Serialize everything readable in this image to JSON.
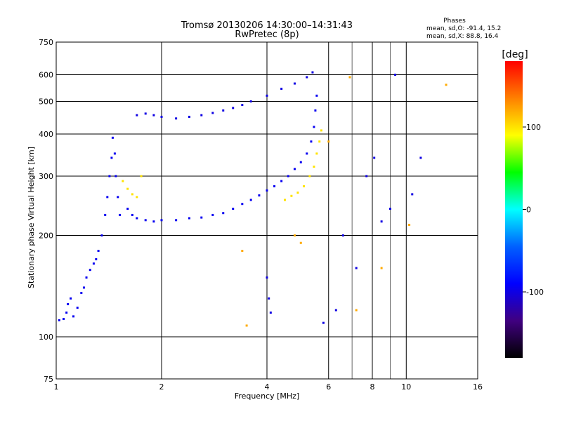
{
  "chart_data": {
    "type": "scatter",
    "title": "Tromsø 20130206 14:30:00–14:31:43",
    "subtitle": "RwPretec (8p)",
    "stats": {
      "heading": "Phases",
      "line_o": "mean, sd,O: -91.4, 15.2",
      "line_x": "mean, sd,X:  88.8, 16.4"
    },
    "xlabel": "Frequency [MHz]",
    "ylabel": "Stationary phase Virtual Height [km]",
    "x_scale": "log",
    "y_scale": "log",
    "xlim": [
      1,
      16
    ],
    "ylim": [
      75,
      750
    ],
    "x_ticks": [
      1,
      2,
      4,
      6,
      8,
      10,
      16
    ],
    "x_tick_labels": [
      "1",
      "2",
      "4",
      "6",
      "8",
      "10",
      "16"
    ],
    "x_minor_lines": [
      7,
      9
    ],
    "y_ticks": [
      75,
      100,
      200,
      300,
      400,
      500,
      600,
      750
    ],
    "y_tick_labels": [
      "75",
      "100",
      "200",
      "300",
      "400",
      "500",
      "600",
      "750"
    ],
    "grid": true,
    "colorbar": {
      "label": "[deg]",
      "range": [
        -180,
        180
      ],
      "ticks": [
        100,
        0,
        -100
      ],
      "tick_labels": [
        "100",
        "0",
        "-100"
      ],
      "colors": [
        "#ff0000",
        "#ff8000",
        "#ffff00",
        "#00ff00",
        "#00ffff",
        "#0060ff",
        "#0000ff",
        "#400080",
        "#000000"
      ]
    },
    "traces": [
      {
        "name": "",
        "phase": -95,
        "points": [
          [
            1.02,
            112
          ],
          [
            1.05,
            113
          ],
          [
            1.07,
            118
          ],
          [
            1.08,
            125
          ],
          [
            1.1,
            130
          ],
          [
            1.12,
            115
          ],
          [
            1.15,
            122
          ],
          [
            1.18,
            135
          ],
          [
            1.2,
            140
          ],
          [
            1.22,
            150
          ],
          [
            1.25,
            158
          ],
          [
            1.28,
            165
          ],
          [
            1.3,
            170
          ],
          [
            1.32,
            180
          ],
          [
            1.35,
            200
          ],
          [
            1.38,
            230
          ],
          [
            1.4,
            260
          ],
          [
            1.42,
            300
          ],
          [
            1.44,
            340
          ],
          [
            1.45,
            390
          ],
          [
            1.47,
            350
          ],
          [
            1.48,
            300
          ],
          [
            1.5,
            260
          ],
          [
            1.52,
            230
          ]
        ]
      },
      {
        "name": "",
        "phase": -95,
        "points": [
          [
            1.6,
            240
          ],
          [
            1.65,
            230
          ],
          [
            1.7,
            225
          ],
          [
            1.8,
            222
          ],
          [
            1.9,
            220
          ],
          [
            2.0,
            222
          ],
          [
            2.2,
            222
          ],
          [
            2.4,
            225
          ],
          [
            2.6,
            226
          ],
          [
            2.8,
            230
          ],
          [
            3.0,
            233
          ],
          [
            3.2,
            240
          ],
          [
            3.4,
            248
          ],
          [
            3.6,
            255
          ],
          [
            3.8,
            263
          ],
          [
            4.0,
            272
          ],
          [
            4.2,
            280
          ],
          [
            4.4,
            290
          ],
          [
            4.6,
            300
          ],
          [
            4.8,
            315
          ],
          [
            5.0,
            330
          ],
          [
            5.2,
            350
          ],
          [
            5.35,
            380
          ],
          [
            5.45,
            420
          ],
          [
            5.5,
            470
          ],
          [
            5.55,
            520
          ]
        ]
      },
      {
        "name": "",
        "phase": 100,
        "points": [
          [
            1.55,
            290
          ],
          [
            1.6,
            275
          ],
          [
            1.65,
            265
          ],
          [
            1.7,
            260
          ],
          [
            1.75,
            300
          ],
          [
            4.5,
            255
          ],
          [
            4.7,
            262
          ],
          [
            4.9,
            268
          ],
          [
            5.1,
            280
          ],
          [
            5.3,
            300
          ],
          [
            5.45,
            320
          ],
          [
            5.55,
            350
          ],
          [
            5.65,
            380
          ],
          [
            5.72,
            410
          ]
        ]
      },
      {
        "name": "",
        "phase": -100,
        "points": [
          [
            1.7,
            455
          ],
          [
            1.8,
            460
          ],
          [
            1.9,
            455
          ],
          [
            2.0,
            450
          ],
          [
            2.2,
            445
          ],
          [
            2.4,
            450
          ],
          [
            2.6,
            455
          ],
          [
            2.8,
            462
          ],
          [
            3.0,
            470
          ],
          [
            3.2,
            478
          ],
          [
            3.4,
            488
          ],
          [
            3.6,
            500
          ],
          [
            4.0,
            520
          ],
          [
            4.4,
            545
          ],
          [
            4.8,
            565
          ],
          [
            5.2,
            590
          ],
          [
            5.4,
            610
          ]
        ]
      },
      {
        "name": "",
        "phase": -100,
        "points": [
          [
            4.0,
            150
          ],
          [
            4.05,
            130
          ],
          [
            4.1,
            118
          ],
          [
            5.8,
            110
          ],
          [
            6.3,
            120
          ],
          [
            6.6,
            200
          ],
          [
            7.2,
            160
          ],
          [
            7.7,
            300
          ],
          [
            8.1,
            340
          ],
          [
            8.5,
            220
          ],
          [
            9.0,
            240
          ],
          [
            9.3,
            600
          ],
          [
            10.4,
            265
          ],
          [
            11.0,
            340
          ]
        ]
      },
      {
        "name": "",
        "phase": 120,
        "points": [
          [
            3.4,
            180
          ],
          [
            3.5,
            108
          ],
          [
            4.8,
            200
          ],
          [
            5.0,
            190
          ],
          [
            6.0,
            380
          ],
          [
            6.9,
            590
          ],
          [
            7.2,
            120
          ],
          [
            8.5,
            160
          ],
          [
            10.2,
            215
          ],
          [
            13.0,
            560
          ]
        ]
      }
    ]
  }
}
